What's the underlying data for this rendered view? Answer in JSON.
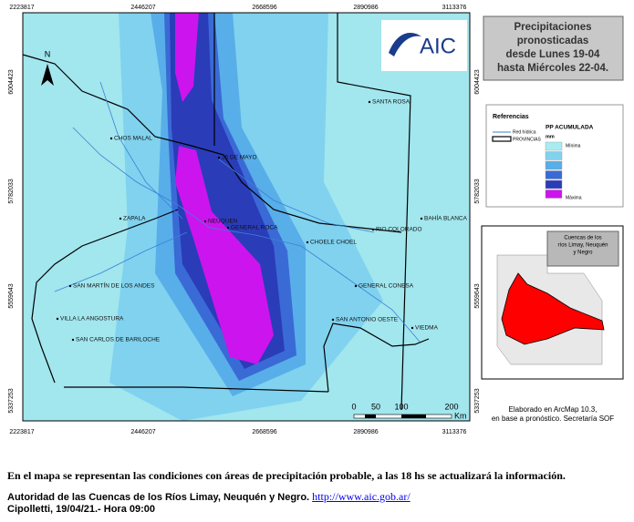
{
  "map": {
    "x_labels": [
      "2223817",
      "2446207",
      "2668596",
      "2890986",
      "3113376"
    ],
    "y_labels": [
      "6004423",
      "5782033",
      "5559643",
      "5337253"
    ],
    "north": "N",
    "places": [
      "CHOS MALAL",
      "25 DE MAYO",
      "SANTA ROSA",
      "ZAPALA",
      "NEUQUEN",
      "GENERAL ROCA",
      "RIO COLORADO",
      "BAHÍA BLANCA",
      "CHOELE CHOEL",
      "SAN MARTÍN DE LOS ANDES",
      "GENERAL CONESA",
      "VILLA LA ANGOSTURA",
      "SAN ANTONIO OESTE",
      "VIEDMA",
      "SAN CARLOS DE BARILOCHE"
    ],
    "scale": {
      "ticks": [
        "0",
        "50",
        "100",
        "200"
      ],
      "unit": "Km"
    }
  },
  "logo": "AIC",
  "title": [
    "Precipitaciones",
    "pronosticadas",
    "desde Lunes 19-04",
    "hasta Miércoles 22-04."
  ],
  "legend": {
    "heading": "Referencias",
    "river": "Red hídrica",
    "provinces": "PROVINCIAS",
    "pp": "PP ACUMULADA",
    "unit": "mm",
    "min": "Mínima",
    "max": "Máxima"
  },
  "inset": {
    "label": [
      "Cuencas de los",
      "ríos Limay, Neuquén",
      "y Negro"
    ]
  },
  "credit": [
    "Elaborado en ArcMap 10.3,",
    "en base a pronóstico. Secretaría SOF"
  ],
  "footer": {
    "note": "En el mapa se representan las condiciones con áreas de precipitación probable, a las 18 hs se actualizará la información.",
    "authority": "Autoridad de las Cuencas de los Ríos Limay, Neuquén y Negro.",
    "link": "http://www.aic.gob.ar/",
    "date": "Cipolletti, 19/04/21.- Hora 09:00"
  }
}
